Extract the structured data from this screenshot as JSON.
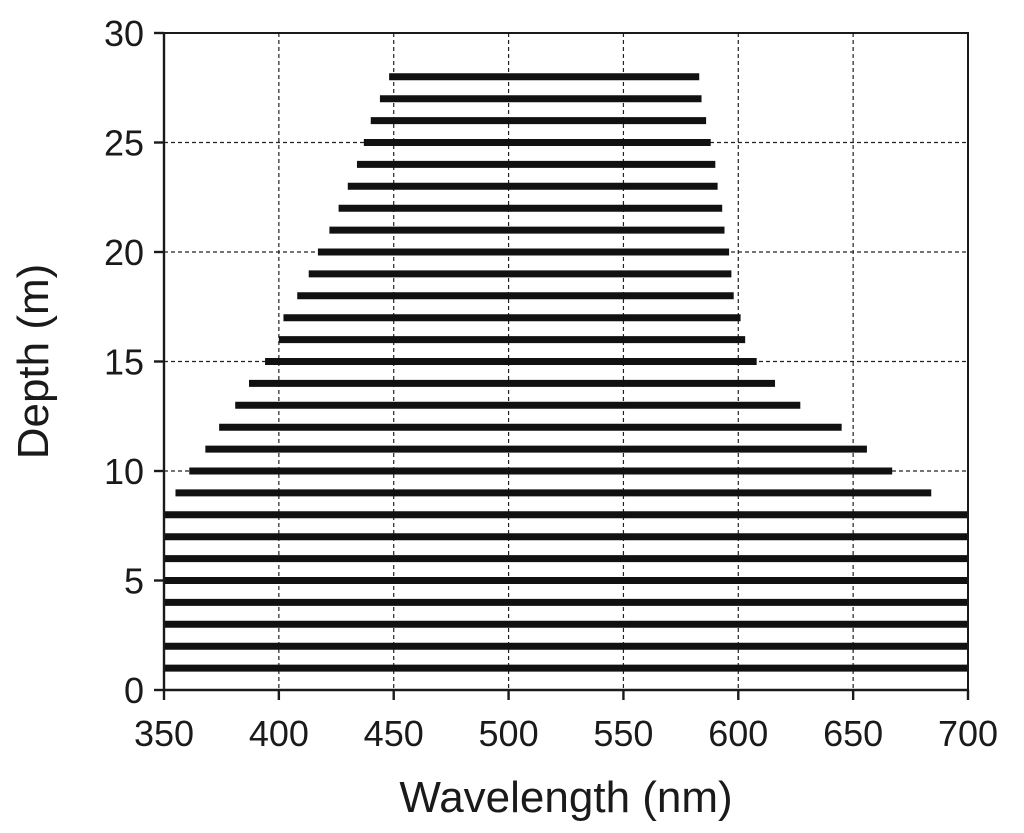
{
  "chart_data": {
    "type": "bar",
    "orientation": "horizontal-range",
    "title": "",
    "xlabel": "Wavelength (nm)",
    "ylabel": "Depth (m)",
    "xlim": [
      350,
      700
    ],
    "ylim": [
      0,
      30
    ],
    "xticks": [
      "350",
      "400",
      "450",
      "500",
      "550",
      "600",
      "650",
      "700"
    ],
    "yticks": [
      "0",
      "5",
      "10",
      "15",
      "20",
      "25",
      "30"
    ],
    "grid": true,
    "legend": "none",
    "line_color": "#111111",
    "ranges": [
      {
        "depth": 1,
        "start": 350,
        "end": 700
      },
      {
        "depth": 2,
        "start": 350,
        "end": 700
      },
      {
        "depth": 3,
        "start": 350,
        "end": 700
      },
      {
        "depth": 4,
        "start": 350,
        "end": 700
      },
      {
        "depth": 5,
        "start": 350,
        "end": 700
      },
      {
        "depth": 6,
        "start": 350,
        "end": 700
      },
      {
        "depth": 7,
        "start": 350,
        "end": 700
      },
      {
        "depth": 8,
        "start": 350,
        "end": 700
      },
      {
        "depth": 9,
        "start": 355,
        "end": 684
      },
      {
        "depth": 10,
        "start": 361,
        "end": 667
      },
      {
        "depth": 11,
        "start": 368,
        "end": 656
      },
      {
        "depth": 12,
        "start": 374,
        "end": 645
      },
      {
        "depth": 13,
        "start": 381,
        "end": 627
      },
      {
        "depth": 14,
        "start": 387,
        "end": 616
      },
      {
        "depth": 15,
        "start": 394,
        "end": 608
      },
      {
        "depth": 16,
        "start": 400,
        "end": 603
      },
      {
        "depth": 17,
        "start": 402,
        "end": 601
      },
      {
        "depth": 18,
        "start": 408,
        "end": 598
      },
      {
        "depth": 19,
        "start": 413,
        "end": 597
      },
      {
        "depth": 20,
        "start": 417,
        "end": 596
      },
      {
        "depth": 21,
        "start": 422,
        "end": 594
      },
      {
        "depth": 22,
        "start": 426,
        "end": 593
      },
      {
        "depth": 23,
        "start": 430,
        "end": 591
      },
      {
        "depth": 24,
        "start": 434,
        "end": 590
      },
      {
        "depth": 25,
        "start": 437,
        "end": 588
      },
      {
        "depth": 26,
        "start": 440,
        "end": 586
      },
      {
        "depth": 27,
        "start": 444,
        "end": 584
      },
      {
        "depth": 28,
        "start": 448,
        "end": 583
      }
    ]
  }
}
